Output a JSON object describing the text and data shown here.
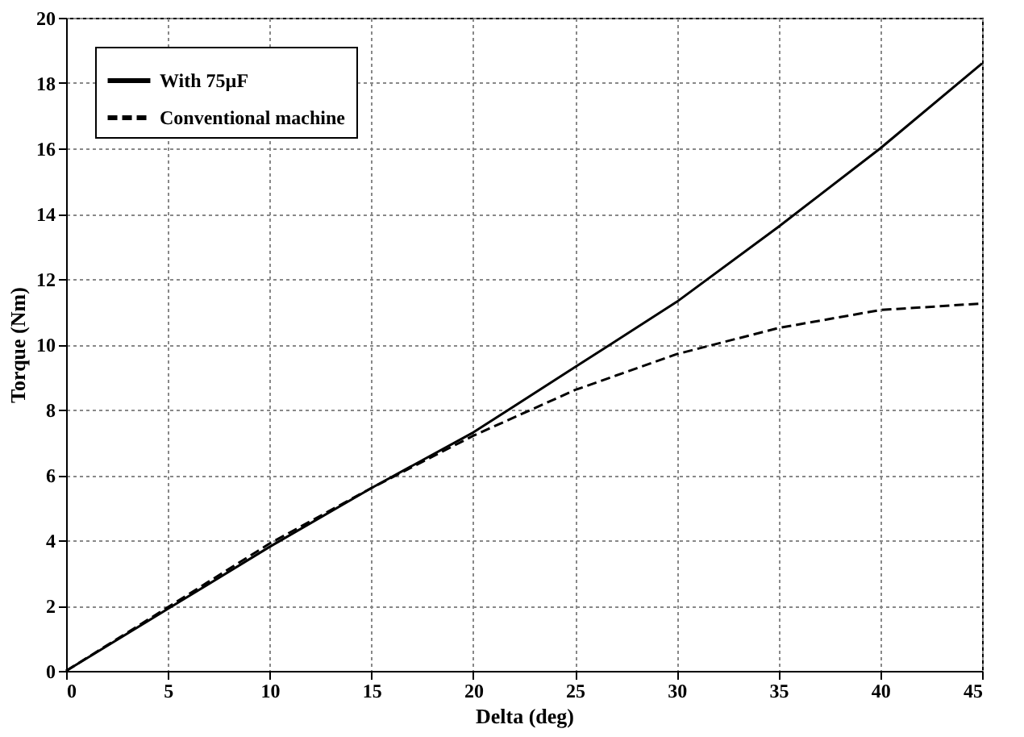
{
  "chart_data": {
    "type": "line",
    "xlabel": "Delta (deg)",
    "ylabel": "Torque (Nm)",
    "x": [
      0,
      5,
      10,
      15,
      20,
      25,
      30,
      35,
      40,
      45
    ],
    "series": [
      {
        "name": "With 75µF",
        "color": "#000000",
        "line_style": "solid",
        "values": [
          0,
          1.9,
          3.8,
          5.6,
          7.3,
          9.3,
          11.3,
          13.6,
          16.0,
          18.6
        ]
      },
      {
        "name": "Conventional machine",
        "color": "#000000",
        "line_style": "dashed",
        "values": [
          0,
          1.95,
          3.9,
          5.6,
          7.2,
          8.6,
          9.7,
          10.5,
          11.05,
          11.25
        ]
      }
    ],
    "xlim": [
      0,
      45
    ],
    "xticks": [
      0,
      5,
      10,
      15,
      20,
      25,
      30,
      35,
      40,
      45
    ],
    "ylim": [
      0,
      20
    ],
    "yticks": [
      0,
      2,
      4,
      6,
      8,
      10,
      12,
      14,
      16,
      18,
      20
    ],
    "grid": true,
    "legend": "top left",
    "marker": "none"
  }
}
